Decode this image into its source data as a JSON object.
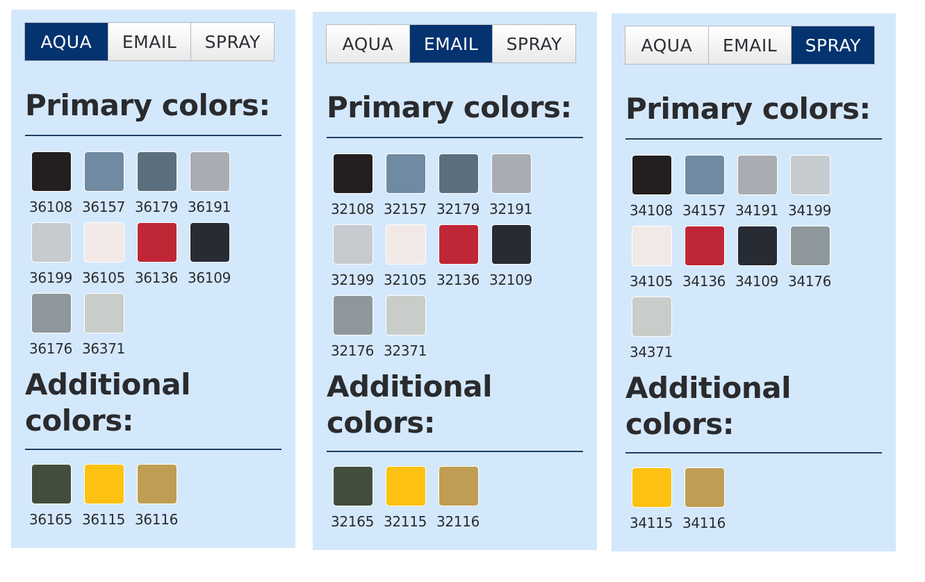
{
  "panels": [
    {
      "tabs": [
        "AQUA",
        "EMAIL",
        "SPRAY"
      ],
      "active_tab": 0,
      "primary_heading": "Primary colors:",
      "additional_heading_line1": "Additional",
      "additional_heading_line2": "colors:",
      "primary": [
        {
          "code": "36108",
          "color": "#231f20"
        },
        {
          "code": "36157",
          "color": "#6f8aa1"
        },
        {
          "code": "36179",
          "color": "#5c6f7e"
        },
        {
          "code": "36191",
          "color": "#a9acb2"
        },
        {
          "code": "36199",
          "color": "#c6cbd0"
        },
        {
          "code": "36105",
          "color": "#f2e9e6"
        },
        {
          "code": "36136",
          "color": "#c02736"
        },
        {
          "code": "36109",
          "color": "#262b34"
        },
        {
          "code": "36176",
          "color": "#8e979b"
        },
        {
          "code": "36371",
          "color": "#c8cdc9"
        }
      ],
      "additional": [
        {
          "code": "36165",
          "color": "#434d3d"
        },
        {
          "code": "36115",
          "color": "#fdc111"
        },
        {
          "code": "36116",
          "color": "#bf9e53"
        }
      ]
    },
    {
      "tabs": [
        "AQUA",
        "EMAIL",
        "SPRAY"
      ],
      "active_tab": 1,
      "primary_heading": "Primary colors:",
      "additional_heading_line1": "Additional",
      "additional_heading_line2": "colors:",
      "primary": [
        {
          "code": "32108",
          "color": "#231f20"
        },
        {
          "code": "32157",
          "color": "#6f8aa1"
        },
        {
          "code": "32179",
          "color": "#5c6f7e"
        },
        {
          "code": "32191",
          "color": "#a9acb2"
        },
        {
          "code": "32199",
          "color": "#c6cbd0"
        },
        {
          "code": "32105",
          "color": "#f2e9e6"
        },
        {
          "code": "32136",
          "color": "#c02736"
        },
        {
          "code": "32109",
          "color": "#262b34"
        },
        {
          "code": "32176",
          "color": "#8e979b"
        },
        {
          "code": "32371",
          "color": "#c8cdc9"
        }
      ],
      "additional": [
        {
          "code": "32165",
          "color": "#434d3d"
        },
        {
          "code": "32115",
          "color": "#fdc111"
        },
        {
          "code": "32116",
          "color": "#bf9e53"
        }
      ]
    },
    {
      "tabs": [
        "AQUA",
        "EMAIL",
        "SPRAY"
      ],
      "active_tab": 2,
      "primary_heading": "Primary colors:",
      "additional_heading_line1": "Additional",
      "additional_heading_line2": "colors:",
      "primary": [
        {
          "code": "34108",
          "color": "#231f20"
        },
        {
          "code": "34157",
          "color": "#6f8aa1"
        },
        {
          "code": "34191",
          "color": "#a9acb2"
        },
        {
          "code": "34199",
          "color": "#c6cbd0"
        },
        {
          "code": "34105",
          "color": "#f2e9e6"
        },
        {
          "code": "34136",
          "color": "#c02736"
        },
        {
          "code": "34109",
          "color": "#262b34"
        },
        {
          "code": "34176",
          "color": "#8e979b"
        },
        {
          "code": "34371",
          "color": "#c8cdc9"
        }
      ],
      "additional": [
        {
          "code": "34115",
          "color": "#fdc111"
        },
        {
          "code": "34116",
          "color": "#bf9e53"
        }
      ]
    }
  ]
}
